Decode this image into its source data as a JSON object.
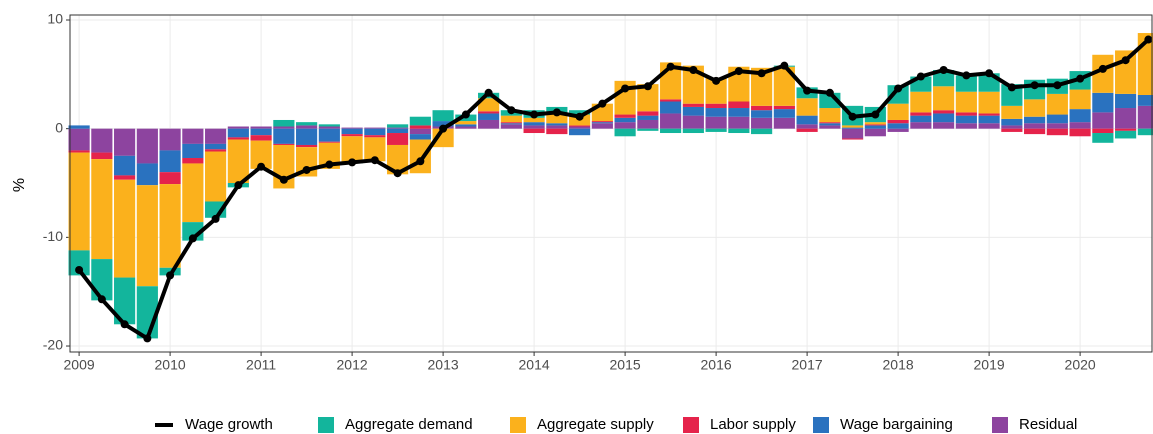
{
  "chart_data": {
    "type": "bar",
    "y_label": "%",
    "xlim": [
      2008.9,
      2020.79
    ],
    "ylim": [
      -20.55,
      10.46
    ],
    "xticks": [
      2009,
      2010,
      2011,
      2012,
      2013,
      2014,
      2015,
      2016,
      2017,
      2018,
      2019,
      2020
    ],
    "yticks": [
      -20,
      -10,
      0,
      10
    ],
    "grid": true,
    "legend": "bottom",
    "x": [
      2009,
      2009.25,
      2009.5,
      2009.75,
      2010,
      2010.25,
      2010.5,
      2010.75,
      2011,
      2011.25,
      2011.5,
      2011.75,
      2012,
      2012.25,
      2012.5,
      2012.75,
      2013,
      2013.25,
      2013.5,
      2013.75,
      2014,
      2014.25,
      2014.5,
      2014.75,
      2015,
      2015.25,
      2015.5,
      2015.75,
      2016,
      2016.25,
      2016.5,
      2016.75,
      2017,
      2017.25,
      2017.5,
      2017.75,
      2018,
      2018.25,
      2018.5,
      2018.75,
      2019,
      2019.25,
      2019.5,
      2019.75,
      2020,
      2020.25,
      2020.5,
      2020.75
    ],
    "series": [
      {
        "name": "Wage growth",
        "type": "line",
        "color": "#000000",
        "values": [
          -13,
          -15.7,
          -18,
          -19.3,
          -13.5,
          -10.1,
          -8.3,
          -5.2,
          -3.5,
          -4.7,
          -3.8,
          -3.3,
          -3.1,
          -2.9,
          -4.1,
          -3.0,
          0,
          1.3,
          3.3,
          1.7,
          1.3,
          1.5,
          1.1,
          2.3,
          3.7,
          3.9,
          5.7,
          5.4,
          4.4,
          5.3,
          5.1,
          5.8,
          3.5,
          3.3,
          1.1,
          1.3,
          3.7,
          4.8,
          5.4,
          4.9,
          5.1,
          3.8,
          4.0,
          4.0,
          4.6,
          5.5,
          6.3,
          8.2
        ]
      },
      {
        "name": "Aggregate demand",
        "color": "#13b59c",
        "values": [
          -2.3,
          -3.8,
          -4.3,
          -4.8,
          -0.7,
          -1.7,
          -1.5,
          -0.4,
          0,
          0.6,
          0.3,
          0.2,
          -0.1,
          0,
          0.3,
          0.8,
          1.0,
          0.6,
          0.5,
          0.5,
          0.7,
          0.6,
          0.4,
          0,
          -0.7,
          -0.2,
          -0.4,
          -0.4,
          -0.3,
          -0.4,
          -0.5,
          0.1,
          1.0,
          1.4,
          1.8,
          1.4,
          1.7,
          1.4,
          1.5,
          1.5,
          1.7,
          2.0,
          1.8,
          1.4,
          1.7,
          -0.9,
          -0.7,
          -0.6
        ]
      },
      {
        "name": "Aggregate supply",
        "color": "#fbb11c",
        "values": [
          -9,
          -9.2,
          -9,
          -9.3,
          -7.7,
          -5.4,
          -4.6,
          -4,
          -2.6,
          -4,
          -2.7,
          -2.4,
          -2.4,
          -2.2,
          -2.7,
          -3.1,
          -1.7,
          0.3,
          1.2,
          0.6,
          0.4,
          0.9,
          1.0,
          1.6,
          3.1,
          2.5,
          3.4,
          3.5,
          2.4,
          3.2,
          3.5,
          3.6,
          1.6,
          1.3,
          0.2,
          0.2,
          1.5,
          1.9,
          2.2,
          1.9,
          2.0,
          1.2,
          1.6,
          1.9,
          1.8,
          3.5,
          4.0,
          5.7
        ]
      },
      {
        "name": "Labor supply",
        "color": "#e5234b",
        "values": [
          -0.2,
          -0.6,
          -0.4,
          0,
          -1.1,
          -0.5,
          -0.2,
          -0.2,
          -0.5,
          -0.1,
          -0.2,
          -0.1,
          -0.2,
          -0.2,
          -1.1,
          0.3,
          0,
          0,
          0.2,
          0.1,
          -0.4,
          -0.5,
          0.1,
          0.1,
          0.3,
          0.4,
          0.2,
          0.3,
          0.4,
          0.6,
          0.4,
          0.3,
          -0.3,
          0.1,
          -0.1,
          0.1,
          0.3,
          0.3,
          0.3,
          0.3,
          0.2,
          -0.3,
          -0.5,
          -0.6,
          -0.7,
          -0.4,
          -0.2,
          0
        ]
      },
      {
        "name": "Wage bargaining",
        "color": "#2a72bf",
        "values": [
          0.3,
          0,
          -1.8,
          -2,
          -2,
          -1.3,
          -0.5,
          -0.8,
          -0.6,
          -1.4,
          -1.5,
          -1.2,
          -0.5,
          -0.6,
          -0.4,
          -0.5,
          0.5,
          0.2,
          0.6,
          0.1,
          0.3,
          0.2,
          -0.6,
          0.1,
          0.4,
          0.4,
          1.1,
          0.8,
          0.8,
          0.8,
          0.7,
          0.8,
          0.8,
          0.2,
          0.1,
          0.3,
          0.5,
          0.6,
          0.8,
          0.7,
          0.7,
          0.6,
          0.6,
          0.8,
          1.2,
          1.8,
          1.3,
          1.0
        ]
      },
      {
        "name": "Residual",
        "color": "#8d449f",
        "values": [
          -2.0,
          -2.2,
          -2.5,
          -3.2,
          -2,
          -1.4,
          -1.4,
          0.2,
          0.2,
          0.2,
          0.3,
          0.2,
          0.1,
          0.1,
          0.1,
          -0.5,
          0.2,
          0.2,
          0.8,
          0.4,
          0.3,
          0.3,
          0.2,
          0.5,
          0.6,
          0.8,
          1.4,
          1.2,
          1.1,
          1.1,
          1.0,
          1.0,
          0.4,
          0.3,
          -0.9,
          -0.7,
          -0.3,
          0.6,
          0.6,
          0.5,
          0.5,
          0.3,
          0.5,
          0.5,
          0.6,
          1.5,
          1.9,
          2.1
        ]
      }
    ]
  }
}
